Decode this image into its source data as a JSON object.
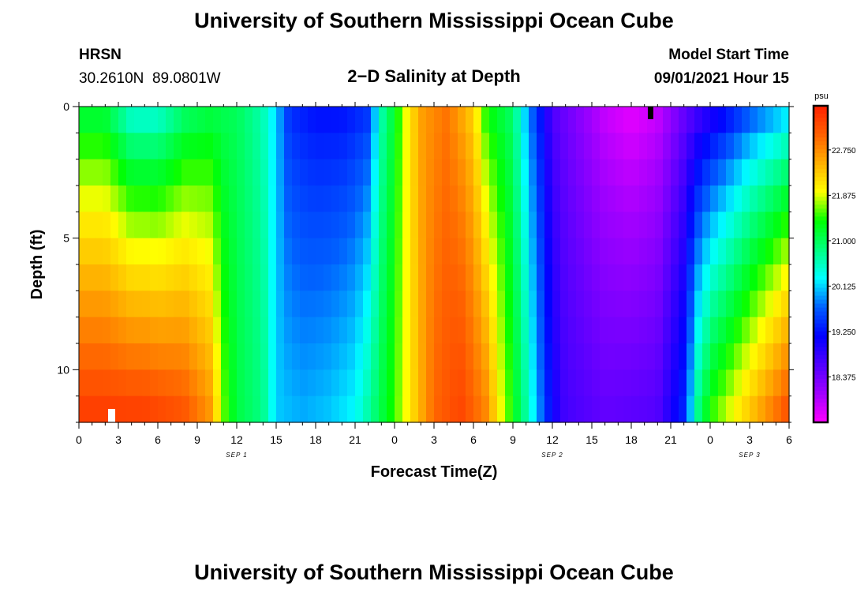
{
  "header": {
    "title": "University of Southern Mississippi Ocean Cube",
    "station": "HRSN",
    "coords": "30.2610N  89.0801W",
    "model_label": "Model Start Time",
    "model_time": "09/01/2021 Hour 15"
  },
  "footer": {
    "title": "University of Southern Mississippi Ocean Cube"
  },
  "colors": {
    "scale": [
      "#ff00ff",
      "#a000ff",
      "#5000ff",
      "#0000ff",
      "#0060ff",
      "#00ffff",
      "#00ff80",
      "#00ff00",
      "#ffff00",
      "#ffb000",
      "#ff6000",
      "#ff2000"
    ]
  },
  "chart_data": {
    "type": "heatmap",
    "title": "2−D Salinity at Depth",
    "xlabel": "Forecast Time(Z)",
    "ylabel": "Depth (ft)",
    "x_range_hours": [
      0,
      54
    ],
    "y_range_ft": [
      0,
      12
    ],
    "x_ticks": [
      {
        "h": 0,
        "label": "0"
      },
      {
        "h": 3,
        "label": "3"
      },
      {
        "h": 6,
        "label": "6"
      },
      {
        "h": 9,
        "label": "9"
      },
      {
        "h": 12,
        "label": "12"
      },
      {
        "h": 15,
        "label": "15"
      },
      {
        "h": 18,
        "label": "18"
      },
      {
        "h": 21,
        "label": "21"
      },
      {
        "h": 24,
        "label": "0"
      },
      {
        "h": 27,
        "label": "3"
      },
      {
        "h": 30,
        "label": "6"
      },
      {
        "h": 33,
        "label": "9"
      },
      {
        "h": 36,
        "label": "12"
      },
      {
        "h": 39,
        "label": "15"
      },
      {
        "h": 42,
        "label": "18"
      },
      {
        "h": 45,
        "label": "21"
      },
      {
        "h": 48,
        "label": "0"
      },
      {
        "h": 51,
        "label": "3"
      },
      {
        "h": 54,
        "label": "6"
      }
    ],
    "date_labels": [
      {
        "h": 12,
        "label": "SEP 1"
      },
      {
        "h": 36,
        "label": "SEP 2"
      },
      {
        "h": 51,
        "label": "SEP 3"
      }
    ],
    "y_ticks": [
      {
        "ft": 0,
        "label": "0"
      },
      {
        "ft": 5,
        "label": "5"
      },
      {
        "ft": 10,
        "label": "10"
      }
    ],
    "colorbar": {
      "unit": "psu",
      "min": 17.5,
      "max": 23.6,
      "ticks": [
        22.75,
        21.875,
        21.0,
        20.125,
        19.25,
        18.375
      ],
      "tick_labels": [
        "22.750",
        "21.875",
        "21.000",
        "20.125",
        "19.250",
        "18.375"
      ]
    },
    "surface_profile": [
      [
        0,
        21.0
      ],
      [
        2,
        21.0
      ],
      [
        4,
        20.3
      ],
      [
        6,
        20.3
      ],
      [
        8,
        20.8
      ],
      [
        10,
        21.0
      ],
      [
        12,
        21.0
      ],
      [
        14,
        20.6
      ],
      [
        15,
        20.1
      ],
      [
        16,
        19.4
      ],
      [
        18,
        19.2
      ],
      [
        20,
        19.2
      ],
      [
        22,
        19.4
      ],
      [
        23,
        20.6
      ],
      [
        24,
        21.2
      ],
      [
        25,
        22.0
      ],
      [
        26,
        22.6
      ],
      [
        28,
        22.9
      ],
      [
        30,
        22.2
      ],
      [
        31,
        21.3
      ],
      [
        33,
        20.9
      ],
      [
        34,
        20.0
      ],
      [
        35,
        19.3
      ],
      [
        36,
        18.6
      ],
      [
        40,
        17.8
      ],
      [
        42,
        17.6
      ],
      [
        44,
        17.8
      ],
      [
        46,
        18.4
      ],
      [
        49,
        19.0
      ],
      [
        51,
        19.5
      ],
      [
        54,
        20.0
      ]
    ],
    "bottom_profile": [
      [
        0,
        23.4
      ],
      [
        5,
        23.4
      ],
      [
        8,
        23.2
      ],
      [
        10,
        22.7
      ],
      [
        11,
        21.6
      ],
      [
        12,
        21.1
      ],
      [
        14,
        20.8
      ],
      [
        15,
        20.1
      ],
      [
        17,
        20.0
      ],
      [
        19,
        20.1
      ],
      [
        21,
        20.3
      ],
      [
        23,
        21.1
      ],
      [
        24,
        21.5
      ],
      [
        25,
        22.0
      ],
      [
        27,
        23.0
      ],
      [
        29,
        23.3
      ],
      [
        31,
        22.8
      ],
      [
        32,
        22.0
      ],
      [
        34,
        20.7
      ],
      [
        36,
        19.1
      ],
      [
        37,
        18.7
      ],
      [
        40,
        18.5
      ],
      [
        44,
        18.6
      ],
      [
        46,
        19.4
      ],
      [
        47,
        20.8
      ],
      [
        48,
        21.5
      ],
      [
        50,
        22.1
      ],
      [
        52,
        22.7
      ],
      [
        54,
        23.3
      ]
    ]
  }
}
